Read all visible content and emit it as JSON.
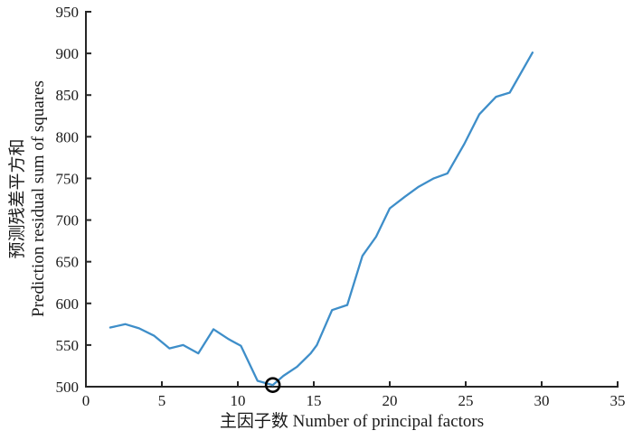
{
  "chart_data": {
    "type": "line",
    "title": "",
    "xlabel": "主因子数 Number of principal factors",
    "ylabel_line1": "预测残差平方和",
    "ylabel_line2": "Prediction residual sum of squares",
    "xlim": [
      0,
      35
    ],
    "ylim": [
      500,
      950
    ],
    "xticks": [
      0,
      5,
      10,
      15,
      20,
      25,
      30,
      35
    ],
    "yticks": [
      500,
      550,
      600,
      650,
      700,
      750,
      800,
      850,
      900,
      950
    ],
    "grid": false,
    "legend_position": "none",
    "axis_color": "#262626",
    "series": [
      {
        "color": "#3e8ec9",
        "points": [
          [
            1.6,
            571
          ],
          [
            2.6,
            575
          ],
          [
            3.5,
            570
          ],
          [
            4.5,
            561
          ],
          [
            5.5,
            546
          ],
          [
            6.4,
            550
          ],
          [
            7.4,
            540
          ],
          [
            8.4,
            569
          ],
          [
            9.4,
            557
          ],
          [
            10.2,
            549
          ],
          [
            11.3,
            507
          ],
          [
            12.3,
            502
          ],
          [
            13.0,
            513
          ],
          [
            13.9,
            524
          ],
          [
            14.8,
            540
          ],
          [
            15.2,
            550
          ],
          [
            16.2,
            592
          ],
          [
            17.2,
            598
          ],
          [
            18.2,
            657
          ],
          [
            19.1,
            680
          ],
          [
            20.0,
            714
          ],
          [
            21.0,
            728
          ],
          [
            21.9,
            740
          ],
          [
            22.9,
            750
          ],
          [
            23.8,
            756
          ],
          [
            24.9,
            791
          ],
          [
            25.9,
            827
          ],
          [
            27.0,
            848
          ],
          [
            27.9,
            853
          ],
          [
            29.4,
            901
          ]
        ]
      }
    ],
    "annotation_marker": {
      "shape": "circle",
      "x": 12.3,
      "y": 502,
      "color": "#000000",
      "meaning": "minimum prediction residual sum of squares"
    }
  }
}
